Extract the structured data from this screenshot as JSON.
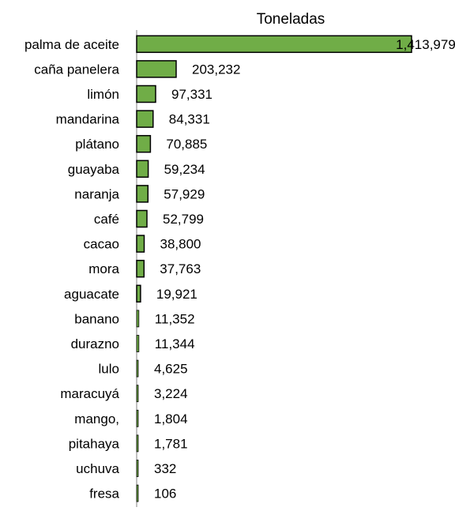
{
  "chart_data": {
    "type": "bar",
    "orientation": "horizontal",
    "title": "Toneladas",
    "categories": [
      "palma de aceite",
      "caña panelera",
      "limón",
      "mandarina",
      "plátano",
      "guayaba",
      "naranja",
      "café",
      "cacao",
      "mora",
      "aguacate",
      "banano",
      "durazno",
      "lulo",
      "maracuyá",
      "mango,",
      "pitahaya",
      "uchuva",
      "fresa"
    ],
    "values": [
      1413979,
      203232,
      97331,
      84331,
      70885,
      59234,
      57929,
      52799,
      38800,
      37763,
      19921,
      11352,
      11344,
      4625,
      3224,
      1804,
      1781,
      332,
      106
    ],
    "value_labels": [
      "1,413,979",
      "203,232",
      "97,331",
      "84,331",
      "70,885",
      "59,234",
      "57,929",
      "52,799",
      "38,800",
      "37,763",
      "19,921",
      "11,352",
      "11,344",
      "4,625",
      "3,224",
      "1,804",
      "1,781",
      "332",
      "106"
    ],
    "xlim": [
      0,
      1413979
    ],
    "bar_color": "#70ad47",
    "bar_edge_color": "#000000",
    "axis_color": "#808080",
    "grid": false,
    "legend": "none"
  }
}
